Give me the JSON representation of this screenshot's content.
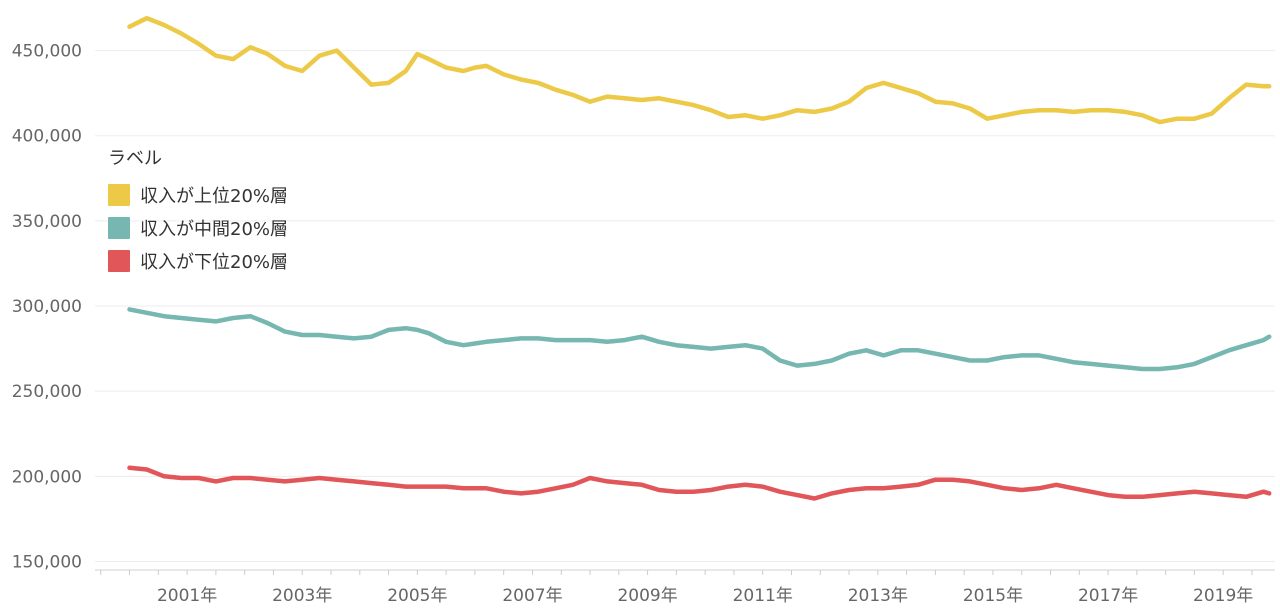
{
  "chart_data": {
    "type": "line",
    "title": "",
    "xlabel": "",
    "ylabel": "",
    "y_ticks": [
      "450,000",
      "400,000",
      "350,000",
      "300,000",
      "250,000",
      "200,000",
      "150,000"
    ],
    "y_tick_values": [
      450000,
      400000,
      350000,
      300000,
      250000,
      200000,
      150000
    ],
    "x_ticks": [
      "2001年",
      "2003年",
      "2005年",
      "2007年",
      "2009年",
      "2011年",
      "2013年",
      "2015年",
      "2017年",
      "2019年"
    ],
    "x_tick_years": [
      2001,
      2003,
      2005,
      2007,
      2009,
      2011,
      2013,
      2015,
      2017,
      2019
    ],
    "ylim": [
      145000,
      475000
    ],
    "xlim": [
      1999.4,
      2019.9
    ],
    "grid": true,
    "legend": {
      "title": "ラベル",
      "placement": "left"
    },
    "series": [
      {
        "name": "収入が上位20%層",
        "color": "#EDC948",
        "x": [
          2000.0,
          2000.3,
          2000.6,
          2000.9,
          2001.2,
          2001.5,
          2001.8,
          2002.1,
          2002.4,
          2002.7,
          2003.0,
          2003.3,
          2003.6,
          2003.9,
          2004.2,
          2004.5,
          2004.8,
          2005.0,
          2005.2,
          2005.5,
          2005.8,
          2006.0,
          2006.2,
          2006.5,
          2006.8,
          2007.1,
          2007.4,
          2007.7,
          2008.0,
          2008.3,
          2008.6,
          2008.9,
          2009.2,
          2009.5,
          2009.8,
          2010.1,
          2010.4,
          2010.7,
          2011.0,
          2011.3,
          2011.6,
          2011.9,
          2012.2,
          2012.5,
          2012.8,
          2013.1,
          2013.4,
          2013.7,
          2014.0,
          2014.3,
          2014.6,
          2014.9,
          2015.2,
          2015.5,
          2015.8,
          2016.1,
          2016.4,
          2016.7,
          2017.0,
          2017.3,
          2017.6,
          2017.9,
          2018.2,
          2018.5,
          2018.8,
          2019.1,
          2019.4,
          2019.7,
          2019.8
        ],
        "values": [
          464000,
          469000,
          465000,
          460000,
          454000,
          447000,
          445000,
          452000,
          448000,
          441000,
          438000,
          447000,
          450000,
          440000,
          430000,
          431000,
          438000,
          448000,
          445000,
          440000,
          438000,
          440000,
          441000,
          436000,
          433000,
          431000,
          427000,
          424000,
          420000,
          423000,
          422000,
          421000,
          422000,
          420000,
          418000,
          415000,
          411000,
          412000,
          410000,
          412000,
          415000,
          414000,
          416000,
          420000,
          428000,
          431000,
          428000,
          425000,
          420000,
          419000,
          416000,
          410000,
          412000,
          414000,
          415000,
          415000,
          414000,
          415000,
          415000,
          414000,
          412000,
          408000,
          410000,
          410000,
          413000,
          422000,
          430000,
          429000,
          429000
        ]
      },
      {
        "name": "収入が中間20%層",
        "color": "#76B7B2",
        "x": [
          2000.0,
          2000.3,
          2000.6,
          2000.9,
          2001.2,
          2001.5,
          2001.8,
          2002.1,
          2002.4,
          2002.7,
          2003.0,
          2003.3,
          2003.6,
          2003.9,
          2004.2,
          2004.5,
          2004.8,
          2005.0,
          2005.2,
          2005.5,
          2005.8,
          2006.0,
          2006.2,
          2006.5,
          2006.8,
          2007.1,
          2007.4,
          2007.7,
          2008.0,
          2008.3,
          2008.6,
          2008.9,
          2009.2,
          2009.5,
          2009.8,
          2010.1,
          2010.4,
          2010.7,
          2011.0,
          2011.3,
          2011.6,
          2011.9,
          2012.2,
          2012.5,
          2012.8,
          2013.1,
          2013.4,
          2013.7,
          2014.0,
          2014.3,
          2014.6,
          2014.9,
          2015.2,
          2015.5,
          2015.8,
          2016.1,
          2016.4,
          2016.7,
          2017.0,
          2017.3,
          2017.6,
          2017.9,
          2018.2,
          2018.5,
          2018.8,
          2019.1,
          2019.4,
          2019.7,
          2019.8
        ],
        "values": [
          298000,
          296000,
          294000,
          293000,
          292000,
          291000,
          293000,
          294000,
          290000,
          285000,
          283000,
          283000,
          282000,
          281000,
          282000,
          286000,
          287000,
          286000,
          284000,
          279000,
          277000,
          278000,
          279000,
          280000,
          281000,
          281000,
          280000,
          280000,
          280000,
          279000,
          280000,
          282000,
          279000,
          277000,
          276000,
          275000,
          276000,
          277000,
          275000,
          268000,
          265000,
          266000,
          268000,
          272000,
          274000,
          271000,
          274000,
          274000,
          272000,
          270000,
          268000,
          268000,
          270000,
          271000,
          271000,
          269000,
          267000,
          266000,
          265000,
          264000,
          263000,
          263000,
          264000,
          266000,
          270000,
          274000,
          277000,
          280000,
          282000
        ]
      },
      {
        "name": "収入が下位20%層",
        "color": "#E15759",
        "x": [
          2000.0,
          2000.3,
          2000.6,
          2000.9,
          2001.2,
          2001.5,
          2001.8,
          2002.1,
          2002.4,
          2002.7,
          2003.0,
          2003.3,
          2003.6,
          2003.9,
          2004.2,
          2004.5,
          2004.8,
          2005.0,
          2005.2,
          2005.5,
          2005.8,
          2006.0,
          2006.2,
          2006.5,
          2006.8,
          2007.1,
          2007.4,
          2007.7,
          2008.0,
          2008.3,
          2008.6,
          2008.9,
          2009.2,
          2009.5,
          2009.8,
          2010.1,
          2010.4,
          2010.7,
          2011.0,
          2011.3,
          2011.6,
          2011.9,
          2012.2,
          2012.5,
          2012.8,
          2013.1,
          2013.4,
          2013.7,
          2014.0,
          2014.3,
          2014.6,
          2014.9,
          2015.2,
          2015.5,
          2015.8,
          2016.1,
          2016.4,
          2016.7,
          2017.0,
          2017.3,
          2017.6,
          2017.9,
          2018.2,
          2018.5,
          2018.8,
          2019.1,
          2019.4,
          2019.7,
          2019.8
        ],
        "values": [
          205000,
          204000,
          200000,
          199000,
          199000,
          197000,
          199000,
          199000,
          198000,
          197000,
          198000,
          199000,
          198000,
          197000,
          196000,
          195000,
          194000,
          194000,
          194000,
          194000,
          193000,
          193000,
          193000,
          191000,
          190000,
          191000,
          193000,
          195000,
          199000,
          197000,
          196000,
          195000,
          192000,
          191000,
          191000,
          192000,
          194000,
          195000,
          194000,
          191000,
          189000,
          187000,
          190000,
          192000,
          193000,
          193000,
          194000,
          195000,
          198000,
          198000,
          197000,
          195000,
          193000,
          192000,
          193000,
          195000,
          193000,
          191000,
          189000,
          188000,
          188000,
          189000,
          190000,
          191000,
          190000,
          189000,
          188000,
          191000,
          190000
        ]
      }
    ]
  }
}
